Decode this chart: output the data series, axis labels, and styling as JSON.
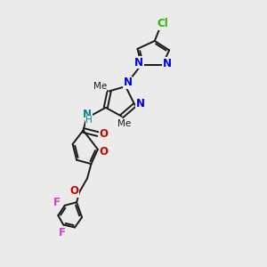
{
  "bg_color": "#ebebeb",
  "bond_color": "#1a1a1a",
  "figsize": [
    3.0,
    3.0
  ],
  "dpi": 100,
  "xlim": [
    0,
    1
  ],
  "ylim": [
    0,
    1
  ]
}
